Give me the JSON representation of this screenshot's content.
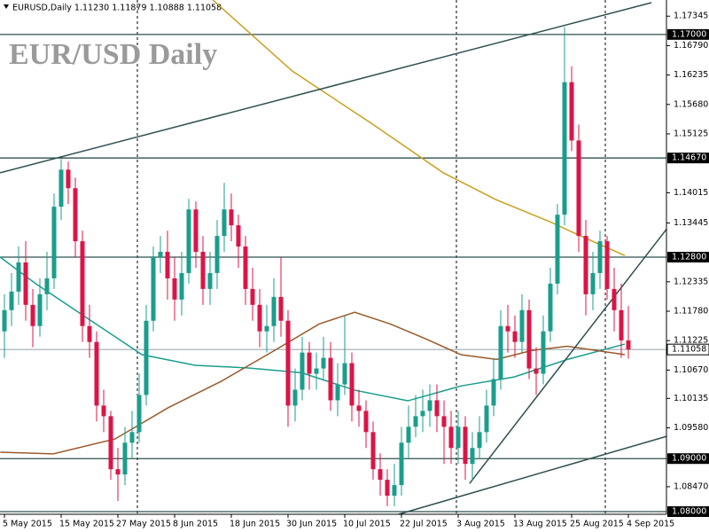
{
  "chart_data": {
    "type": "candlestick",
    "header": "EURUSD,Daily  1.11230 1.11879 1.10888 1.11058",
    "title": "EUR/USD Daily",
    "categories": [
      "5 May 2015",
      null,
      null,
      null,
      null,
      null,
      null,
      null,
      "15 May 2015",
      null,
      null,
      null,
      null,
      null,
      null,
      null,
      "27 May 2015",
      null,
      null,
      null,
      null,
      null,
      null,
      null,
      "8 Jun 2015",
      null,
      null,
      null,
      null,
      null,
      null,
      null,
      "18 Jun 2015",
      null,
      null,
      null,
      null,
      null,
      null,
      null,
      "30 Jun 2015",
      null,
      null,
      null,
      null,
      null,
      null,
      null,
      "10 Jul 2015",
      null,
      null,
      null,
      null,
      null,
      null,
      null,
      "22 Jul 2015",
      null,
      null,
      null,
      null,
      null,
      null,
      null,
      "3 Aug 2015",
      null,
      null,
      null,
      null,
      null,
      null,
      null,
      "13 Aug 2015",
      null,
      null,
      null,
      null,
      null,
      null,
      null,
      "25 Aug 2015",
      null,
      null,
      null,
      null,
      null,
      null,
      null,
      "4 Sep 2015"
    ],
    "open": [
      1.114,
      1.118,
      1.1215,
      1.127,
      1.119,
      1.115,
      1.121,
      1.124,
      1.1375,
      1.1445,
      1.141,
      1.131,
      1.115,
      1.112,
      1.1,
      1.098,
      1.088,
      1.087,
      1.093,
      1.095,
      1.102,
      1.116,
      1.128,
      1.129,
      1.124,
      1.12,
      1.125,
      1.137,
      1.129,
      1.122,
      1.125,
      1.132,
      1.137,
      1.134,
      1.13,
      1.122,
      1.119,
      1.114,
      1.115,
      1.1205,
      1.116,
      1.1,
      1.103,
      1.11,
      1.106,
      1.107,
      1.109,
      1.101,
      1.104,
      1.108,
      1.1,
      1.099,
      1.095,
      1.088,
      1.086,
      1.083,
      1.085,
      1.093,
      1.096,
      1.098,
      1.099,
      1.101,
      1.098,
      1.096,
      1.092,
      1.096,
      1.089,
      1.092,
      1.095,
      1.1,
      1.105,
      1.115,
      1.114,
      1.112,
      1.118,
      1.107,
      1.106,
      1.114,
      1.123,
      1.136,
      1.161,
      1.15,
      1.132,
      1.121,
      1.125,
      1.131,
      1.122,
      1.118,
      1.1123
    ],
    "high": [
      1.121,
      1.125,
      1.13,
      1.131,
      1.122,
      1.124,
      1.129,
      1.14,
      1.1465,
      1.146,
      1.143,
      1.133,
      1.119,
      1.114,
      1.103,
      1.099,
      1.092,
      1.096,
      1.099,
      1.106,
      1.119,
      1.13,
      1.132,
      1.133,
      1.128,
      1.129,
      1.139,
      1.1385,
      1.132,
      1.129,
      1.135,
      1.142,
      1.14,
      1.136,
      1.132,
      1.126,
      1.122,
      1.119,
      1.124,
      1.128,
      1.118,
      1.107,
      1.113,
      1.112,
      1.11,
      1.113,
      1.112,
      1.108,
      1.117,
      1.11,
      1.103,
      1.101,
      1.097,
      1.091,
      1.088,
      1.089,
      1.096,
      1.1,
      1.102,
      1.103,
      1.104,
      1.104,
      1.101,
      1.099,
      1.099,
      1.098,
      1.095,
      1.098,
      1.103,
      1.109,
      1.118,
      1.119,
      1.117,
      1.121,
      1.12,
      1.111,
      1.117,
      1.126,
      1.138,
      1.1714,
      1.164,
      1.153,
      1.135,
      1.129,
      1.133,
      1.132,
      1.126,
      1.123,
      1.11879
    ],
    "low": [
      1.109,
      1.115,
      1.119,
      1.116,
      1.111,
      1.113,
      1.118,
      1.122,
      1.135,
      1.138,
      1.128,
      1.112,
      1.109,
      1.097,
      1.095,
      1.086,
      1.082,
      1.085,
      1.09,
      1.093,
      1.1,
      1.114,
      1.125,
      1.12,
      1.116,
      1.117,
      1.123,
      1.126,
      1.119,
      1.119,
      1.122,
      1.129,
      1.131,
      1.126,
      1.119,
      1.116,
      1.111,
      1.11,
      1.112,
      1.113,
      1.096,
      1.097,
      1.101,
      1.103,
      1.103,
      1.105,
      1.099,
      1.098,
      1.102,
      1.097,
      1.096,
      1.092,
      1.086,
      1.083,
      1.081,
      1.081,
      1.083,
      1.09,
      1.094,
      1.095,
      1.096,
      1.095,
      1.089,
      1.089,
      1.089,
      1.086,
      1.086,
      1.09,
      1.093,
      1.098,
      1.103,
      1.11,
      1.109,
      1.11,
      1.105,
      1.102,
      1.104,
      1.112,
      1.121,
      1.134,
      1.148,
      1.129,
      1.117,
      1.118,
      1.122,
      1.12,
      1.114,
      1.109,
      1.10888
    ],
    "close": [
      1.118,
      1.1215,
      1.127,
      1.119,
      1.115,
      1.121,
      1.124,
      1.1375,
      1.1445,
      1.141,
      1.131,
      1.115,
      1.112,
      1.1,
      1.098,
      1.088,
      1.087,
      1.093,
      1.095,
      1.102,
      1.116,
      1.128,
      1.129,
      1.124,
      1.12,
      1.125,
      1.137,
      1.129,
      1.122,
      1.125,
      1.132,
      1.137,
      1.134,
      1.13,
      1.122,
      1.119,
      1.114,
      1.115,
      1.1205,
      1.116,
      1.1,
      1.103,
      1.11,
      1.106,
      1.107,
      1.109,
      1.101,
      1.104,
      1.108,
      1.1,
      1.099,
      1.095,
      1.088,
      1.086,
      1.083,
      1.085,
      1.093,
      1.096,
      1.098,
      1.099,
      1.101,
      1.098,
      1.096,
      1.092,
      1.096,
      1.089,
      1.092,
      1.095,
      1.1,
      1.105,
      1.115,
      1.114,
      1.112,
      1.118,
      1.107,
      1.106,
      1.114,
      1.123,
      1.136,
      1.161,
      1.15,
      1.132,
      1.121,
      1.125,
      1.131,
      1.122,
      1.118,
      1.1123,
      1.11058
    ],
    "up_color": "#1a9e8c",
    "down_color": "#dc1446",
    "overlays": [
      {
        "color": "#c8a020",
        "x": [
          29.4,
          40.6,
          51.9,
          61.9,
          69.4,
          76.9,
          81.9,
          87.5
        ],
        "values": [
          1.1765,
          1.1631,
          1.1531,
          1.1439,
          1.1388,
          1.1347,
          1.1316,
          1.1283
        ]
      },
      {
        "color": "#1a9e8c",
        "x": [
          -0.6,
          4.4,
          11.9,
          19.4,
          26.9,
          34.4,
          41.9,
          49.4,
          56.9,
          64.4,
          71.9,
          79.4,
          87.5
        ],
        "values": [
          1.128,
          1.123,
          1.1163,
          1.1096,
          1.1076,
          1.1071,
          1.1062,
          1.1029,
          1.1009,
          1.1037,
          1.1054,
          1.1087,
          1.1116
        ]
      },
      {
        "color": "#9a5a2a",
        "x": [
          -0.6,
          6.9,
          15.6,
          23.1,
          30.6,
          38.1,
          44.4,
          49.4,
          54.4,
          59.4,
          64.4,
          69.4,
          74.4,
          79.4,
          87.5
        ],
        "values": [
          1.0912,
          1.0909,
          1.0937,
          1.0996,
          1.1046,
          1.1104,
          1.1154,
          1.1176,
          1.1154,
          1.1126,
          1.1096,
          1.1087,
          1.1104,
          1.1112,
          1.1096
        ]
      }
    ],
    "trendlines": [
      {
        "x": [
          -0.625,
          91.25
        ],
        "values": [
          1.1439,
          1.176
        ]
      },
      {
        "x": [
          55.6,
          93.4
        ],
        "values": [
          1.0795,
          1.0942
        ]
      },
      {
        "x": [
          65.6,
          93.4
        ],
        "values": [
          1.0853,
          1.1333
        ]
      }
    ],
    "levels": [
      {
        "value": 1.17,
        "label": "1.17000"
      },
      {
        "value": 1.1467,
        "label": "1.14670"
      },
      {
        "value": 1.128,
        "label": "1.12800"
      },
      {
        "value": 1.09,
        "label": "1.09000"
      },
      {
        "value": 1.08,
        "label": "1.08000"
      }
    ],
    "last_price": {
      "value": 1.11058,
      "label": "1.11058"
    },
    "ylim": [
      1.0795,
      1.1765
    ],
    "yticks": [
      1.17345,
      {
        "value": 1.1679,
        "label": "1.16790"
      },
      1.16235,
      {
        "value": 1.1568,
        "label": "1.15680"
      },
      1.15125,
      1.14015,
      1.13445,
      1.12335,
      {
        "value": 1.1178,
        "label": "1.11780"
      },
      1.11225,
      {
        "value": 1.1067,
        "label": "1.10670"
      },
      1.10135,
      {
        "value": 1.0958,
        "label": "1.09580"
      },
      {
        "value": 1.0847,
        "label": "1.08470"
      }
    ]
  }
}
